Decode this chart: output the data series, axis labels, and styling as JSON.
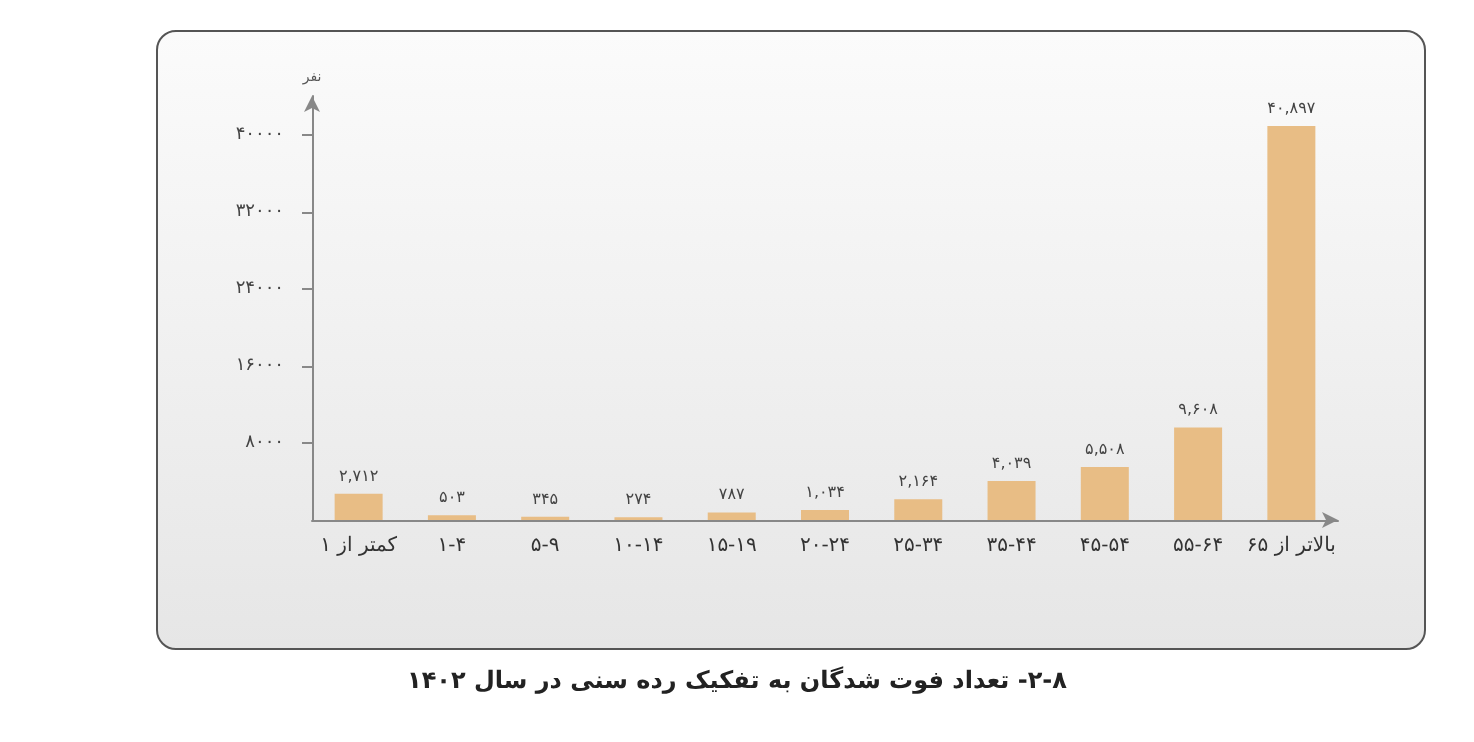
{
  "chart_data": {
    "type": "bar",
    "title": "۲-۸- تعداد فوت شدگان به تفکیک رده سنی در سال ۱۴۰۲",
    "ylabel": "نفر",
    "categories": [
      "کمتر از ۱",
      "۱-۴",
      "۵-۹",
      "۱۰-۱۴",
      "۱۵-۱۹",
      "۲۰-۲۴",
      "۲۵-۳۴",
      "۳۵-۴۴",
      "۴۵-۵۴",
      "۵۵-۶۴",
      "بالاتر از ۶۵"
    ],
    "values": [
      2712,
      503,
      345,
      274,
      787,
      1034,
      2164,
      4039,
      5508,
      9608,
      40897
    ],
    "value_labels": [
      "۲,۷۱۲",
      "۵۰۳",
      "۳۴۵",
      "۲۷۴",
      "۷۸۷",
      "۱,۰۳۴",
      "۲,۱۶۴",
      "۴,۰۳۹",
      "۵,۵۰۸",
      "۹,۶۰۸",
      "۴۰,۸۹۷"
    ],
    "color": "#e8bd85",
    "ylim": [
      0,
      44000
    ],
    "yticks": [
      {
        "value": 8000,
        "label": "۸۰۰۰"
      },
      {
        "value": 16000,
        "label": "۱۶۰۰۰"
      },
      {
        "value": 24000,
        "label": "۲۴۰۰۰"
      },
      {
        "value": 32000,
        "label": "۳۲۰۰۰"
      },
      {
        "value": 40000,
        "label": "۴۰۰۰۰"
      }
    ],
    "grid": false
  }
}
